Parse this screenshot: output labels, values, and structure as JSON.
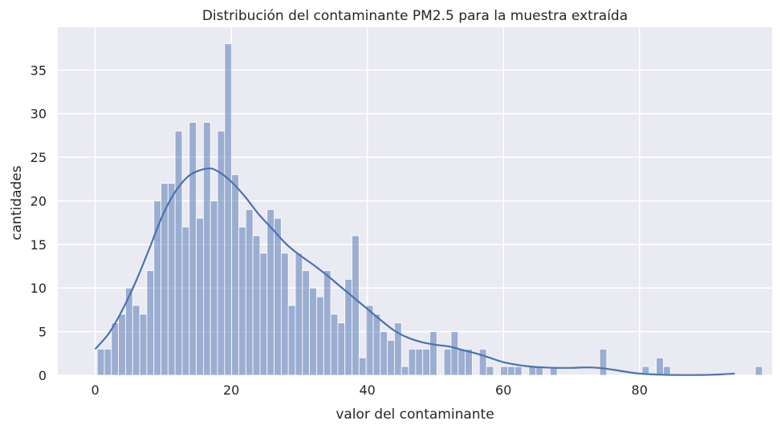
{
  "chart_data": {
    "type": "bar",
    "subtype": "histogram",
    "title": "Distribución del contaminante PM2.5 para la muestra extraída",
    "xlabel": "valor del contaminante",
    "ylabel": "cantidades",
    "xlim": [
      -5.5,
      99.5
    ],
    "ylim": [
      0,
      39.9
    ],
    "grid": true,
    "legend": "none",
    "x_ticks": [
      0,
      20,
      40,
      60,
      80
    ],
    "y_ticks": [
      0,
      5,
      10,
      15,
      20,
      25,
      30,
      35
    ],
    "bin_start": 0.3,
    "bin_width": 1.04,
    "counts": [
      3,
      3,
      6,
      7,
      10,
      8,
      7,
      12,
      20,
      22,
      22,
      28,
      17,
      29,
      18,
      29,
      20,
      28,
      38,
      23,
      17,
      19,
      16,
      14,
      19,
      18,
      14,
      8,
      14,
      12,
      10,
      9,
      12,
      7,
      6,
      11,
      16,
      2,
      8,
      7,
      5,
      4,
      6,
      1,
      3,
      3,
      3,
      5,
      0,
      3,
      5,
      3,
      3,
      0,
      3,
      1,
      0,
      1,
      1,
      1,
      0,
      1,
      1,
      0,
      1,
      0,
      0,
      0,
      0,
      0,
      0,
      3,
      0,
      0,
      0,
      0,
      0,
      1,
      0,
      2,
      1,
      0,
      0,
      0,
      0,
      0,
      0,
      0,
      0,
      0,
      0,
      0,
      0,
      1
    ],
    "kde": {
      "x": [
        0,
        2,
        4,
        6,
        8,
        10,
        12,
        14,
        16.5,
        18,
        20,
        22,
        24,
        26,
        28,
        30,
        32,
        34,
        36,
        38,
        40,
        42,
        44,
        46,
        48,
        50,
        52,
        54,
        56,
        58,
        60,
        62,
        64,
        66,
        68,
        70,
        72,
        74,
        76,
        78,
        80,
        82,
        84,
        86,
        88,
        90,
        92,
        94
      ],
      "y": [
        3.0,
        4.8,
        7.5,
        10.8,
        14.6,
        18.5,
        21.3,
        23.0,
        23.7,
        23.4,
        22.2,
        20.5,
        18.5,
        16.8,
        15.1,
        13.8,
        12.7,
        11.5,
        10.2,
        8.9,
        7.6,
        6.3,
        5.1,
        4.3,
        3.8,
        3.5,
        3.3,
        2.9,
        2.5,
        2.0,
        1.5,
        1.2,
        1.0,
        0.9,
        0.85,
        0.85,
        0.9,
        0.85,
        0.65,
        0.4,
        0.2,
        0.1,
        0.05,
        0.03,
        0.03,
        0.05,
        0.1,
        0.2
      ]
    },
    "colors": {
      "background": "#EAEAF2",
      "grid": "#FFFFFF",
      "bar_fill": "#4C72B0",
      "bar_fill_opacity": 0.5,
      "bar_edge": "#FFFFFF",
      "kde_line": "#4C72B0",
      "text": "#262626"
    }
  }
}
